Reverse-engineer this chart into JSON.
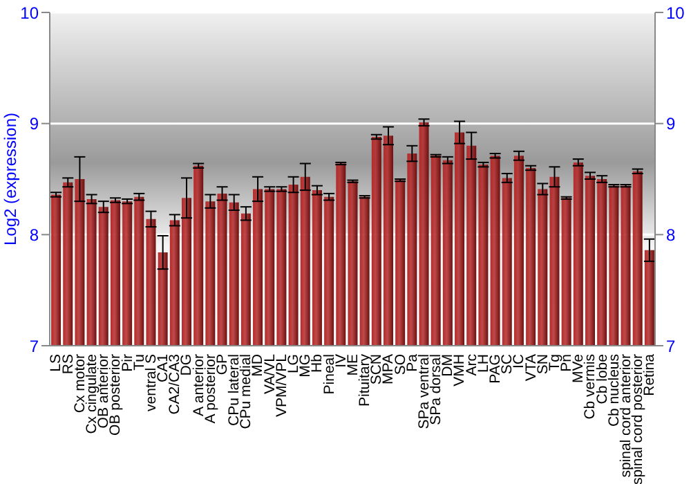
{
  "chart_data": {
    "type": "bar",
    "ylabel": "Log2 (expression)",
    "categories": [
      "LS",
      "RS",
      "Cx motor",
      "Cx cingulate",
      "OB anterior",
      "OB posterior",
      "Pir",
      "Tu",
      "ventral S",
      "CA1",
      "CA2/CA3",
      "DG",
      "A anterior",
      "A posterior",
      "GP",
      "CPu lateral",
      "CPu medial",
      "MD",
      "VA/VL",
      "VPM/VPL",
      "LG",
      "MG",
      "Hb",
      "Pineal",
      "IV",
      "ME",
      "Pituitary",
      "SCN",
      "MPA",
      "SO",
      "Pa",
      "SPa ventral",
      "SPa dorsal",
      "DM",
      "VMH",
      "Arc",
      "LH",
      "PAG",
      "SC",
      "IC",
      "VTA",
      "SN",
      "Tg",
      "Pn",
      "MVe",
      "Cb vermis",
      "Cb lobe",
      "Cb nucleus",
      "spinal cord anterior",
      "spinal cord posterior",
      "Retina"
    ],
    "values": [
      8.36,
      8.47,
      8.5,
      8.32,
      8.25,
      8.31,
      8.3,
      8.34,
      8.14,
      7.84,
      8.13,
      8.33,
      8.62,
      8.3,
      8.37,
      8.29,
      8.19,
      8.41,
      8.41,
      8.41,
      8.45,
      8.52,
      8.4,
      8.34,
      8.64,
      8.48,
      8.34,
      8.88,
      8.89,
      8.49,
      8.73,
      9.01,
      8.71,
      8.67,
      8.92,
      8.8,
      8.63,
      8.71,
      8.51,
      8.71,
      8.6,
      8.41,
      8.52,
      8.33,
      8.65,
      8.53,
      8.5,
      8.44,
      8.44,
      8.57,
      7.86
    ],
    "errors": [
      0.02,
      0.04,
      0.2,
      0.04,
      0.05,
      0.02,
      0.02,
      0.03,
      0.07,
      0.15,
      0.05,
      0.18,
      0.02,
      0.06,
      0.06,
      0.07,
      0.06,
      0.11,
      0.02,
      0.02,
      0.07,
      0.12,
      0.04,
      0.03,
      0.01,
      0.01,
      0.01,
      0.02,
      0.08,
      0.01,
      0.07,
      0.03,
      0.01,
      0.03,
      0.1,
      0.12,
      0.02,
      0.02,
      0.04,
      0.04,
      0.02,
      0.05,
      0.09,
      0.01,
      0.03,
      0.03,
      0.03,
      0.01,
      0.01,
      0.02,
      0.1
    ],
    "color": "#b52a2a",
    "ylim": [
      7,
      10
    ],
    "yticks": [
      7,
      8,
      9,
      10
    ],
    "y2lim": [
      7,
      10
    ],
    "y2ticks": [
      7,
      8,
      9,
      10
    ],
    "grid": "y"
  }
}
